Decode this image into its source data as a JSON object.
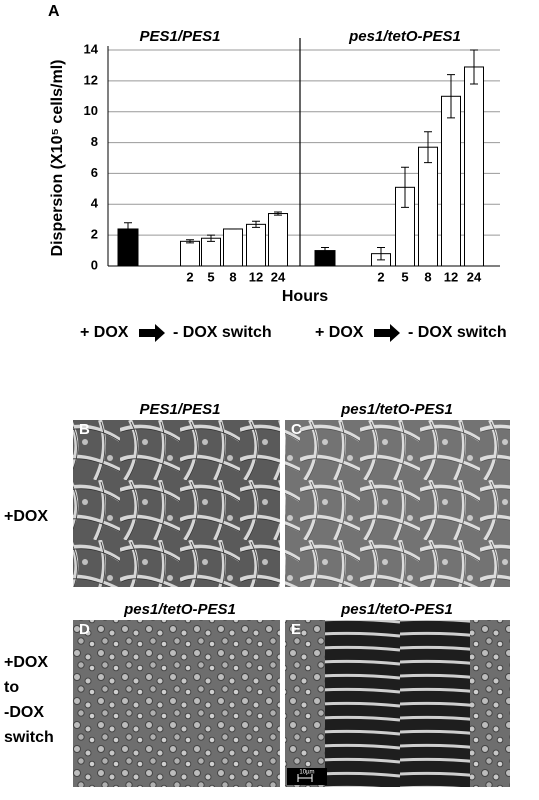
{
  "panel_label": "A",
  "chart_data": {
    "type": "bar",
    "ylabel": "Dispersion (X10⁵ cells/ml)",
    "xlabel": "Hours",
    "ylim": [
      0,
      14
    ],
    "yticks": [
      0,
      2,
      4,
      6,
      8,
      10,
      12,
      14
    ],
    "grid": true,
    "groups": [
      {
        "name": "PES1/PES1",
        "categories": [
          null,
          "2",
          "5",
          "8",
          "12",
          "24"
        ],
        "values": [
          2.4,
          1.6,
          1.8,
          2.4,
          2.7,
          3.4
        ],
        "errors": [
          0.4,
          0.1,
          0.2,
          0,
          0.2,
          0.1
        ],
        "colors": [
          "#000000",
          "#ffffff",
          "#ffffff",
          "#ffffff",
          "#ffffff",
          "#ffffff"
        ]
      },
      {
        "name": "pes1/tetO-PES1",
        "categories": [
          null,
          "2",
          "5",
          "8",
          "12",
          "24"
        ],
        "values": [
          1.0,
          0.8,
          5.1,
          7.7,
          11.0,
          12.9
        ],
        "errors": [
          0.2,
          0.4,
          1.3,
          1.0,
          1.4,
          1.1
        ],
        "colors": [
          "#000000",
          "#ffffff",
          "#ffffff",
          "#ffffff",
          "#ffffff",
          "#ffffff"
        ]
      }
    ]
  },
  "switch_labels": [
    {
      "before": "+ DOX",
      "after": "- DOX switch"
    },
    {
      "before": "+ DOX",
      "after": "- DOX switch"
    }
  ],
  "panels": [
    {
      "label": "B",
      "title": "PES1/PES1"
    },
    {
      "label": "C",
      "title": "pes1/tetO-PES1"
    },
    {
      "label": "D",
      "title": "pes1/tetO-PES1"
    },
    {
      "label": "E",
      "title": "pes1/tetO-PES1"
    }
  ],
  "row_labels": [
    [
      "+DOX"
    ],
    [
      "+DOX",
      "to",
      "-DOX",
      "switch"
    ]
  ],
  "scale_bar": "10µm"
}
